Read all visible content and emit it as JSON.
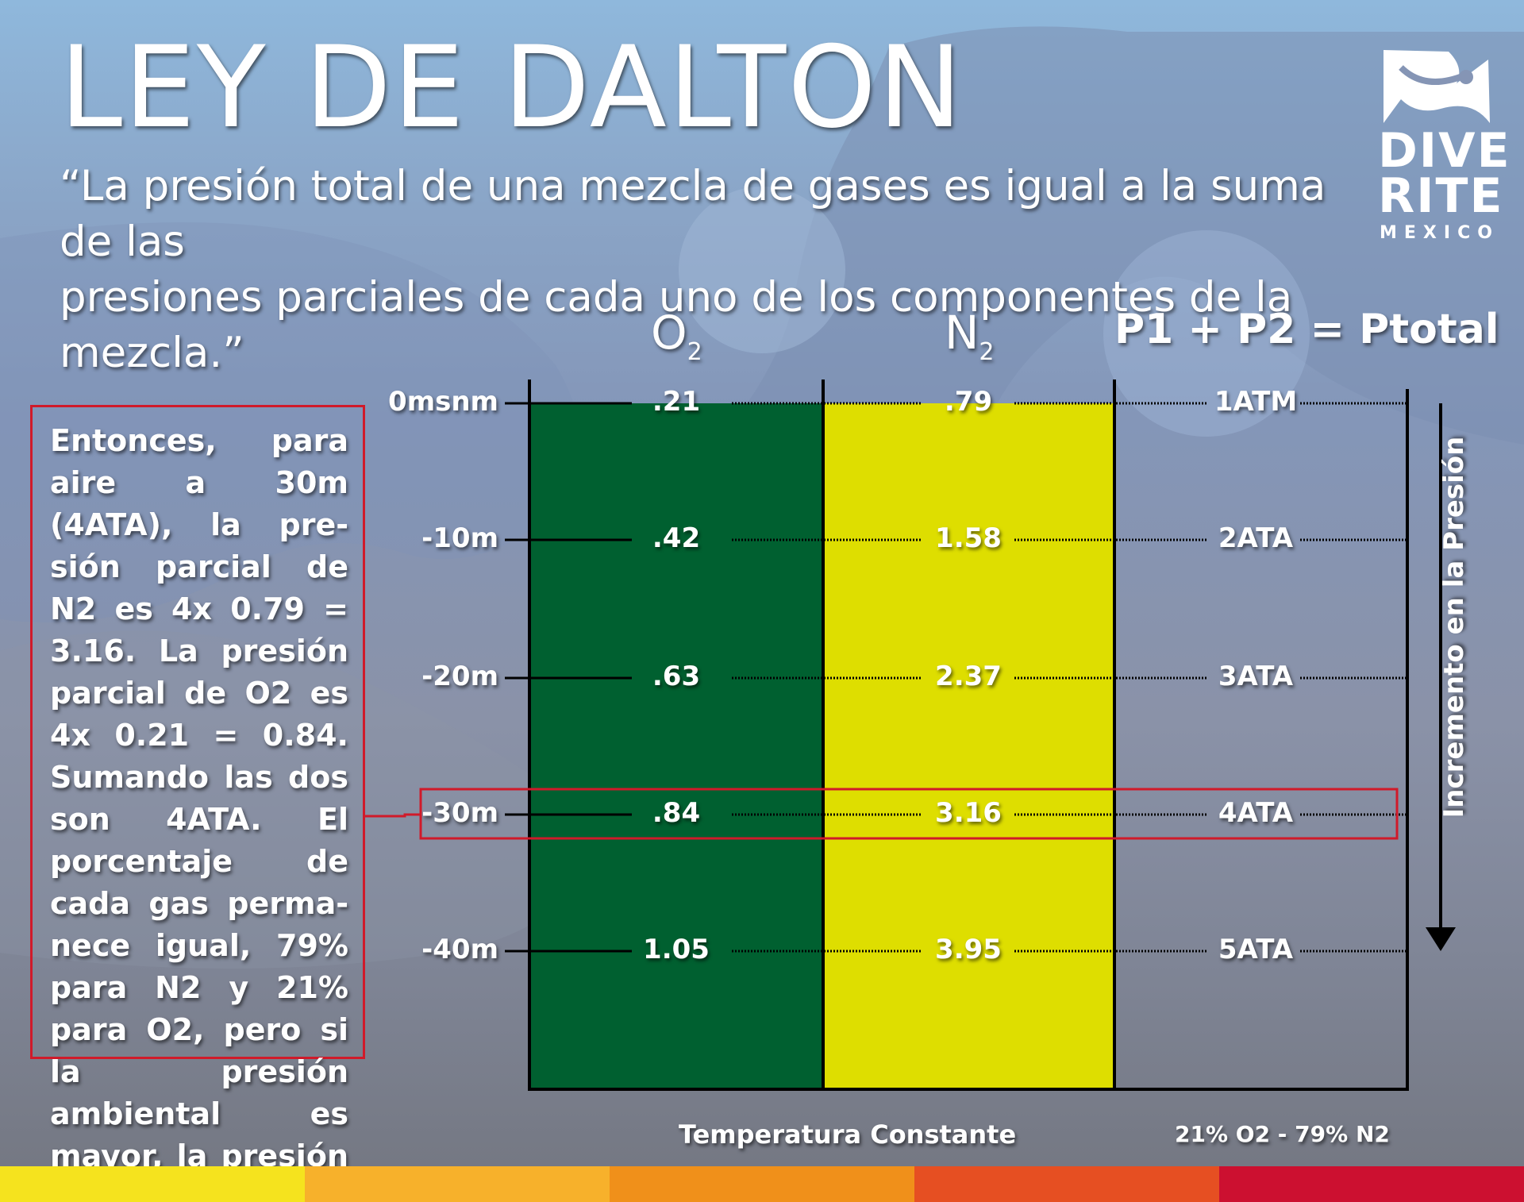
{
  "title": "LEY DE DALTON",
  "quote_line1": "“La presión total de una mezcla de gases es igual a la suma de las",
  "quote_line2": "presiones parciales de cada uno de los componentes de la mezcla.”",
  "logo": {
    "line1": "DIVE",
    "line2": "RITE",
    "line3": "MEXICO"
  },
  "columns": {
    "o2": "O",
    "o2_sub": "2",
    "n2": "N",
    "n2_sub": "2",
    "total": "P1 + P2 = Ptotal"
  },
  "rows": [
    {
      "depth": "0msnm",
      "o2": ".21",
      "n2": ".79",
      "total": "1ATM"
    },
    {
      "depth": "-10m",
      "o2": ".42",
      "n2": "1.58",
      "total": "2ATA"
    },
    {
      "depth": "-20m",
      "o2": ".63",
      "n2": "2.37",
      "total": "3ATA"
    },
    {
      "depth": "-30m",
      "o2": ".84",
      "n2": "3.16",
      "total": "4ATA"
    },
    {
      "depth": "-40m",
      "o2": "1.05",
      "n2": "3.95",
      "total": "5ATA"
    }
  ],
  "note": "Entonces, para aire a 30m (4ATA), la pre­sión parcial de N2 es 4x 0.79 = 3.16. La presión parcial de O2 es 4x 0.21 = 0.84. Sumando las dos son 4ATA. El porcentaje de cada gas perma­nece igual, 79% para N2 y 21% para O2, pero si la presión ambiental es mayor, la presión parcial también será mayor.",
  "side_label": "Incremento en la Presión",
  "footer_left": "Temperatura Constante",
  "footer_right": "21% O2 - 79% N2",
  "colors": {
    "o2": "#006030",
    "n2": "#dede00",
    "highlight": "#d01a2a",
    "stripes": [
      "#f5e31e",
      "#f7b12b",
      "#f0901a",
      "#e64f22",
      "#cc1030"
    ]
  }
}
